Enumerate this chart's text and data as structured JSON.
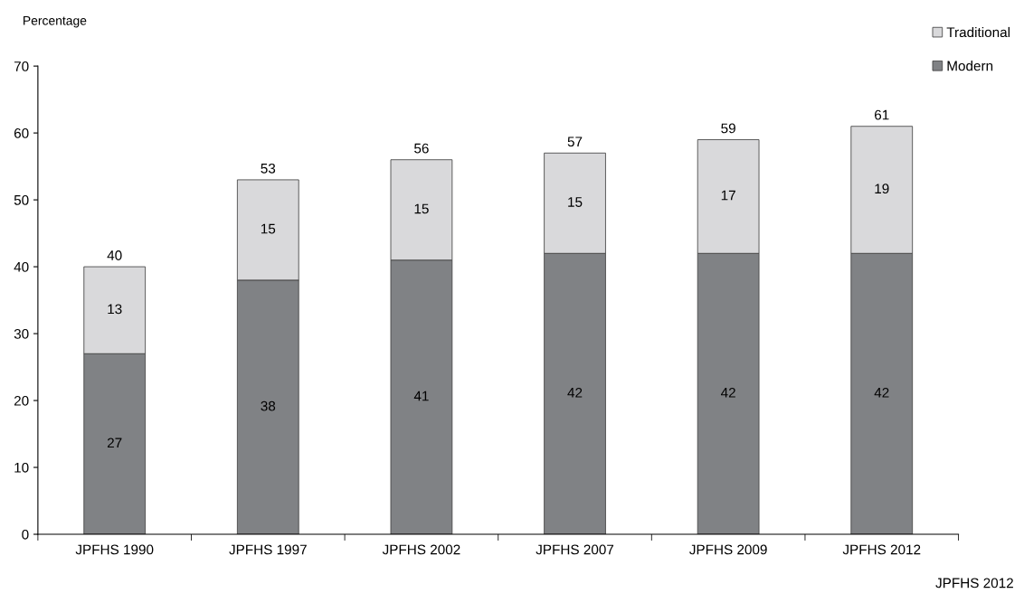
{
  "chart_data": {
    "type": "bar",
    "stacked": true,
    "ylabel": "Percentage",
    "categories": [
      "JPFHS 1990",
      "JPFHS 1997",
      "JPFHS 2002",
      "JPFHS 2007",
      "JPFHS 2009",
      "JPFHS 2012"
    ],
    "series": [
      {
        "name": "Modern",
        "color": "#808285",
        "values": [
          27,
          38,
          41,
          42,
          42,
          42
        ]
      },
      {
        "name": "Traditional",
        "color": "#d9d9db",
        "values": [
          13,
          15,
          15,
          15,
          17,
          19
        ]
      }
    ],
    "totals": [
      "40",
      "53",
      "56",
      "57",
      "59",
      "61"
    ],
    "data_labels": true,
    "ylim": [
      0,
      70
    ],
    "yticks": [
      0,
      10,
      20,
      30,
      40,
      50,
      60,
      70
    ],
    "grid": false,
    "legend": "top right",
    "annotations": [
      "JPFHS 2012"
    ]
  }
}
